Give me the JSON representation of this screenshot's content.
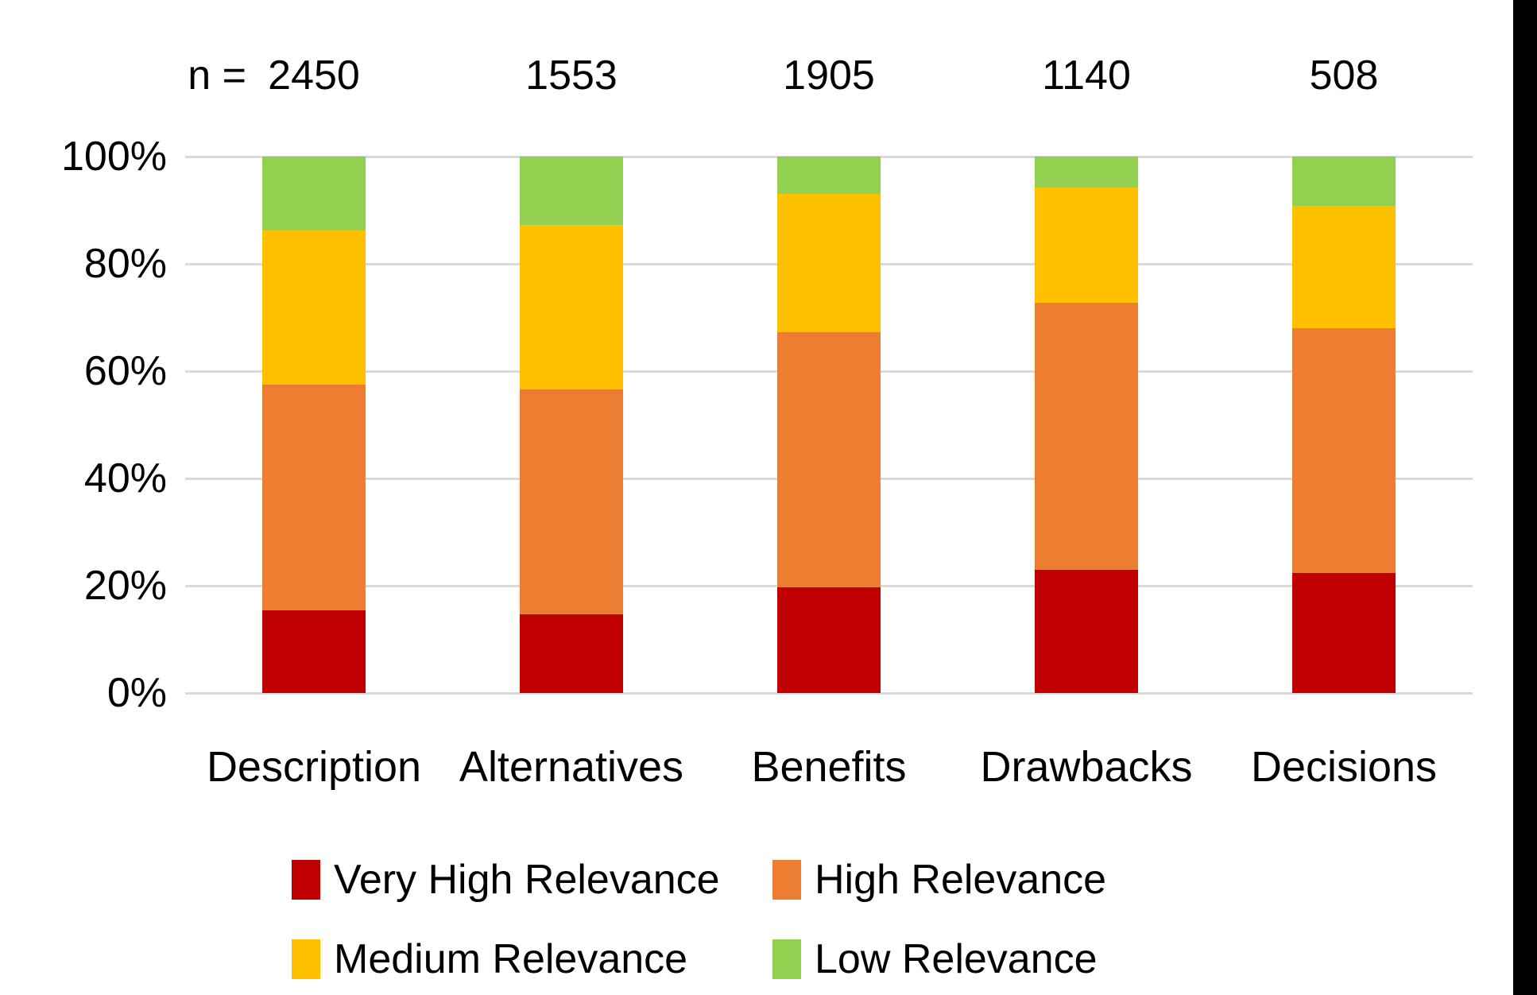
{
  "colors": {
    "background": "#FFFFFF",
    "text": "#000000",
    "gridline": "#D9D9D9",
    "edge_strip": "#000000"
  },
  "chart_data": {
    "type": "bar",
    "subtype": "100-percent-stacked-column",
    "title": "",
    "categories": [
      "Description",
      "Alternatives",
      "Benefits",
      "Drawbacks",
      "Decisions"
    ],
    "n_prefix": "n =",
    "n_values": [
      "2450",
      "1553",
      "1905",
      "1140",
      "508"
    ],
    "series": [
      {
        "name": "Very High Relevance",
        "color": "#C00000",
        "values": [
          15.4,
          14.7,
          19.7,
          23.0,
          22.4
        ]
      },
      {
        "name": "High Relevance",
        "color": "#ED7D31",
        "values": [
          42.1,
          41.9,
          47.6,
          49.7,
          45.6
        ]
      },
      {
        "name": "Medium Relevance",
        "color": "#FFC000",
        "values": [
          28.7,
          30.7,
          25.7,
          21.5,
          22.8
        ]
      },
      {
        "name": "Low Relevance",
        "color": "#92D050",
        "values": [
          13.8,
          12.7,
          7.0,
          5.8,
          9.2
        ]
      }
    ],
    "y_axis": {
      "min": 0,
      "max": 100,
      "unit": "%",
      "ticks": [
        "100%",
        "80%",
        "60%",
        "40%",
        "20%",
        "0%"
      ],
      "grid": true
    },
    "legend": {
      "position": "bottom",
      "layout": "2x2",
      "entries": [
        "Very High Relevance",
        "High Relevance",
        "Medium Relevance",
        "Low Relevance"
      ]
    }
  }
}
